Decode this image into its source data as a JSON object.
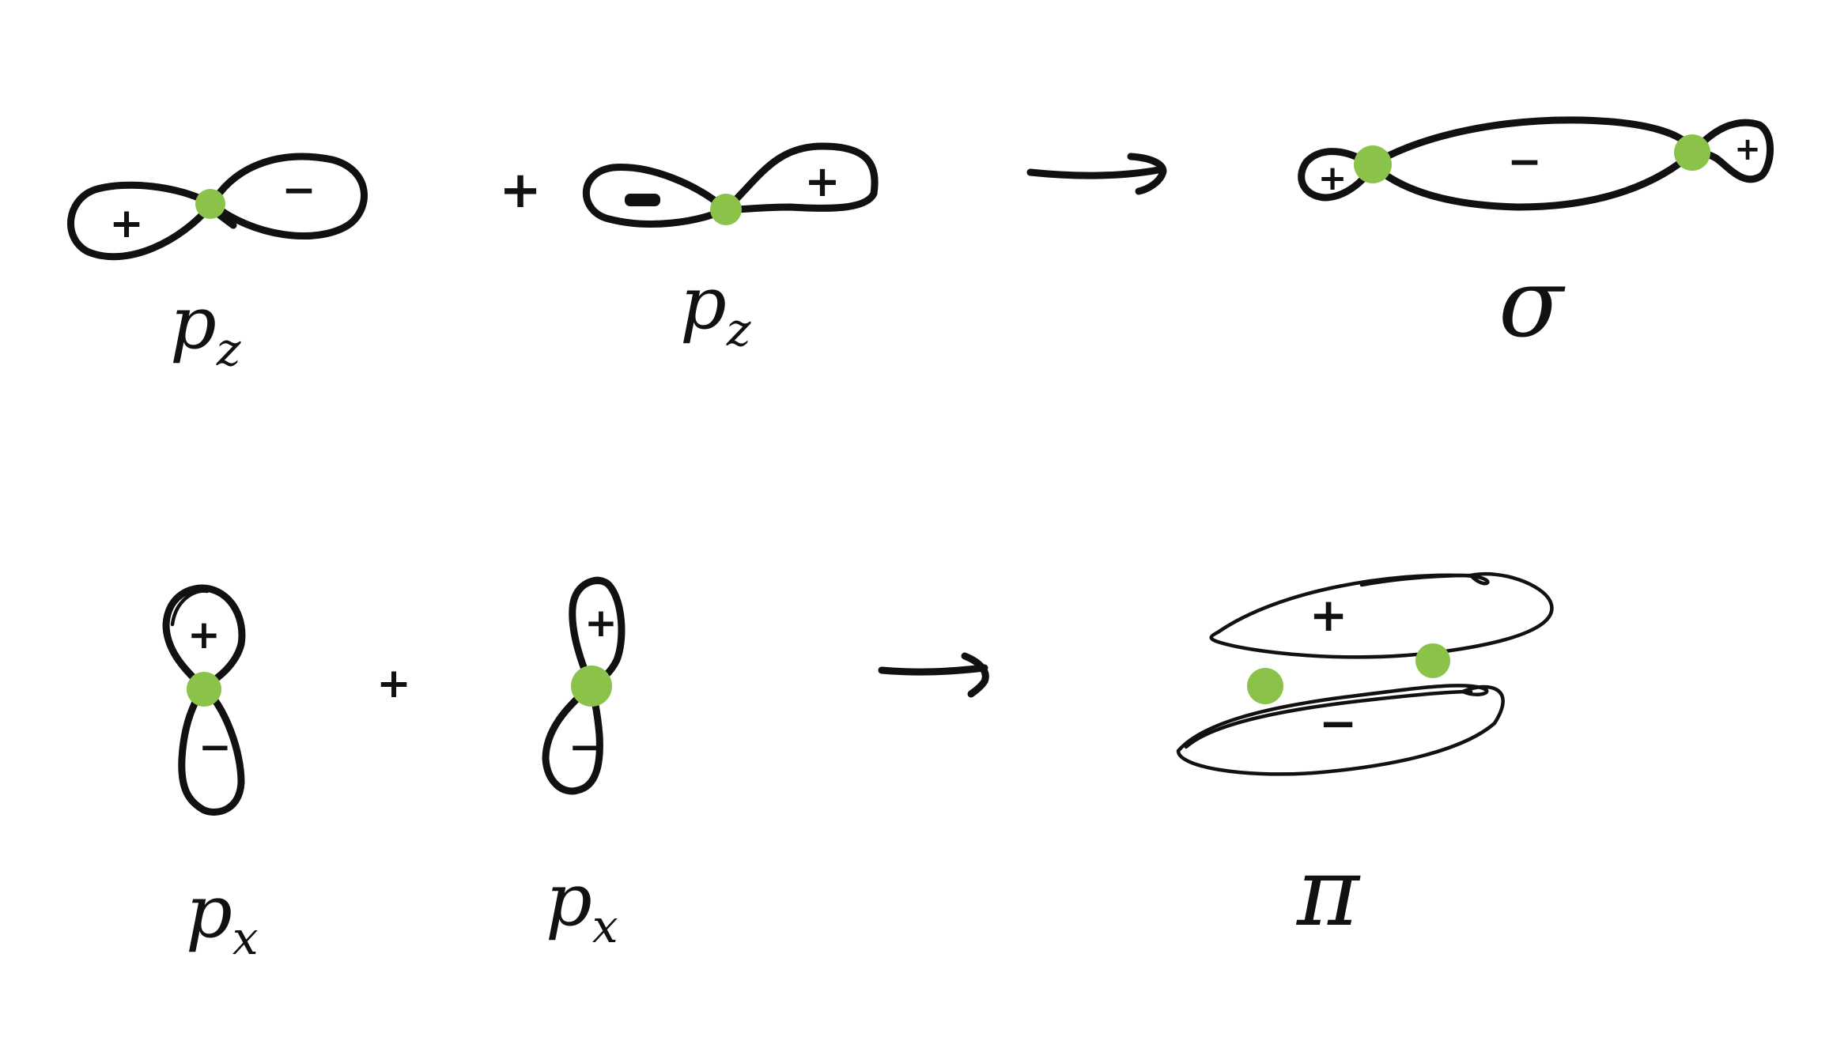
{
  "colors": {
    "ink": "#111111",
    "node": "#8bc34a",
    "background": "#ffffff"
  },
  "row1": {
    "left_orbital": {
      "label": "p",
      "sub": "z",
      "left_sign": "+",
      "right_sign": "−"
    },
    "plus": "+",
    "right_orbital": {
      "label": "p",
      "sub": "z",
      "left_sign": "−",
      "right_sign": "+"
    },
    "result": {
      "left_sign": "+",
      "center_sign": "−",
      "right_sign": "+",
      "label": "σ"
    }
  },
  "row2": {
    "left_orbital": {
      "label": "p",
      "sub": "x",
      "top_sign": "+",
      "bottom_sign": "−"
    },
    "plus": "+",
    "right_orbital": {
      "label": "p",
      "sub": "x",
      "top_sign": "+",
      "bottom_sign": "−"
    },
    "result": {
      "top_sign": "+",
      "bottom_sign": "−",
      "label": "π"
    }
  }
}
